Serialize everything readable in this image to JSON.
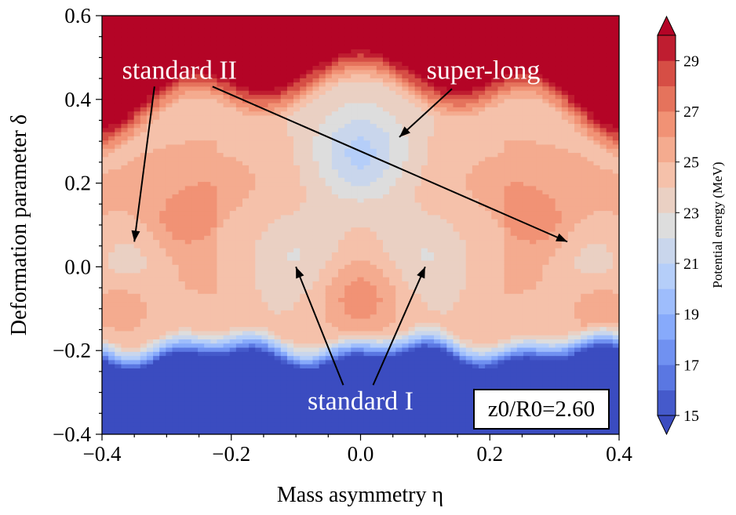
{
  "chart_data": {
    "type": "heatmap",
    "xlabel": "Mass asymmetry η",
    "ylabel": "Deformation parameter δ",
    "xlim": [
      -0.4,
      0.4
    ],
    "ylim": [
      -0.4,
      0.6
    ],
    "x_ticks": [
      "−0.4",
      "−0.2",
      "0.0",
      "0.2",
      "0.4"
    ],
    "y_ticks": [
      "−0.4",
      "−0.2",
      "0.0",
      "0.2",
      "0.4",
      "0.6"
    ],
    "colorbar": {
      "title": "Potential energy (MeV)",
      "min": 15,
      "max": 30,
      "step": 1,
      "tick_labels": [
        "15",
        "17",
        "19",
        "21",
        "23",
        "25",
        "27",
        "29"
      ],
      "extend": "both"
    },
    "parameter_box": {
      "text": "z0/R0=2.60",
      "value": 2.6,
      "position": "bottom-right"
    },
    "annotations": [
      {
        "label": "standard II",
        "text_at": [
          -0.28,
          0.47
        ],
        "arrows_to": [
          [
            -0.35,
            0.06
          ],
          [
            0.32,
            0.06
          ]
        ]
      },
      {
        "label": "super-long",
        "text_at": [
          0.19,
          0.47
        ],
        "arrows_to": [
          [
            0.06,
            0.31
          ]
        ]
      },
      {
        "label": "standard I",
        "text_at": [
          0.0,
          -0.32
        ],
        "arrows_to": [
          [
            -0.1,
            0.0
          ],
          [
            0.1,
            0.0
          ]
        ]
      }
    ],
    "grid": false,
    "nx": 81,
    "ny": 101,
    "cmap": "coolwarm"
  }
}
